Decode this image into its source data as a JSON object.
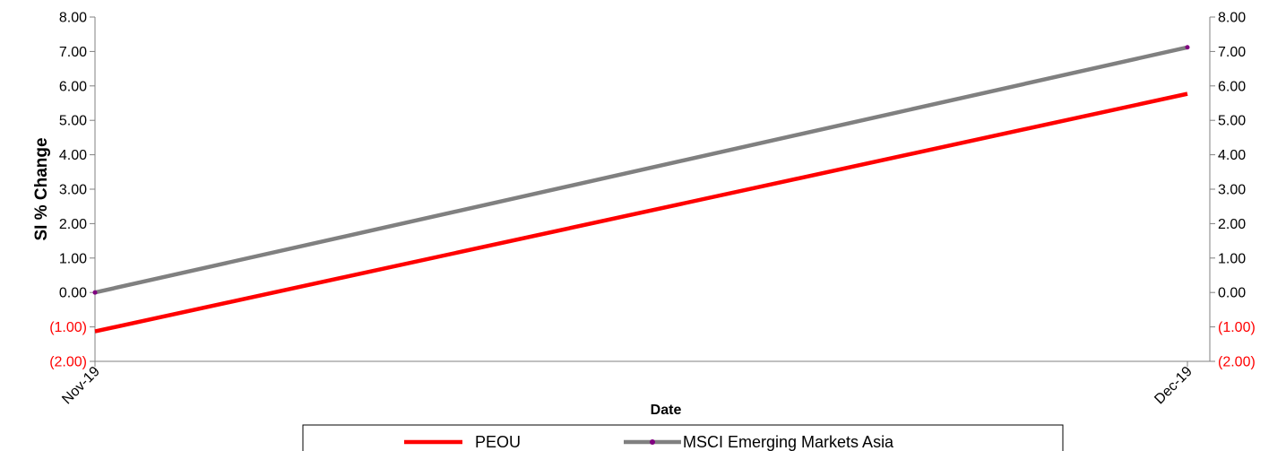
{
  "chart_data": {
    "type": "line",
    "x": [
      "Nov-19",
      "Dec-19"
    ],
    "xlabel": "Date",
    "ylabel": "SI % Change",
    "ylim": [
      -2,
      8
    ],
    "yticks": [
      "(2.00)",
      "(1.00)",
      "0.00",
      "1.00",
      "2.00",
      "3.00",
      "4.00",
      "5.00",
      "6.00",
      "7.00",
      "8.00"
    ],
    "ytick_values": [
      -2,
      -1,
      0,
      1,
      2,
      3,
      4,
      5,
      6,
      7,
      8
    ],
    "secondary_yaxis": true,
    "negative_tick_color": "#ff0000",
    "positive_tick_color": "#000000",
    "grid": false,
    "legend_position": "bottom",
    "series": [
      {
        "name": "PEOU",
        "values": [
          -1.13,
          5.77
        ],
        "color": "#ff0000",
        "marker": false
      },
      {
        "name": "MSCI Emerging Markets Asia",
        "values": [
          0.0,
          7.12
        ],
        "color": "#808080",
        "marker": true,
        "marker_color": "#800080"
      }
    ]
  }
}
